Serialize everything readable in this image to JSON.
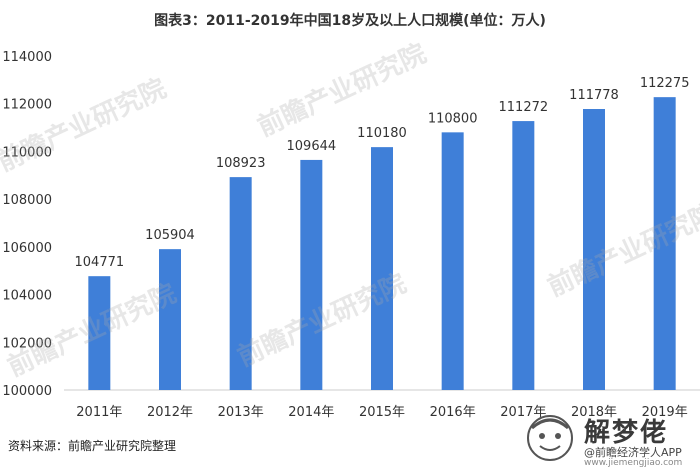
{
  "title": "图表3：2011-2019年中国18岁及以上人口规模(单位：万人)",
  "source": "资料来源：前瞻产业研究院整理",
  "watermark": "前瞻产业研究院",
  "brand": {
    "name": "解梦佬",
    "sub": "@前瞻经济学人APP",
    "url": "www.jiemengjiao.com"
  },
  "colors": {
    "bar": "#3f7fd8",
    "axis": "#cccccc",
    "text": "#333333"
  },
  "chart_data": {
    "type": "bar",
    "categories": [
      "2011年",
      "2012年",
      "2013年",
      "2014年",
      "2015年",
      "2016年",
      "2017年",
      "2018年",
      "2019年"
    ],
    "values": [
      104771,
      105904,
      108923,
      109644,
      110180,
      110800,
      111272,
      111778,
      112275
    ],
    "ylim": [
      100000,
      114000
    ],
    "yticks": [
      "100000",
      "102000",
      "104000",
      "106000",
      "108000",
      "110000",
      "112000",
      "114000"
    ],
    "data_labels": [
      "104771",
      "105904",
      "108923",
      "109644",
      "110180",
      "110800",
      "111272",
      "111778",
      "112275"
    ],
    "grid": false,
    "legend": "none"
  }
}
